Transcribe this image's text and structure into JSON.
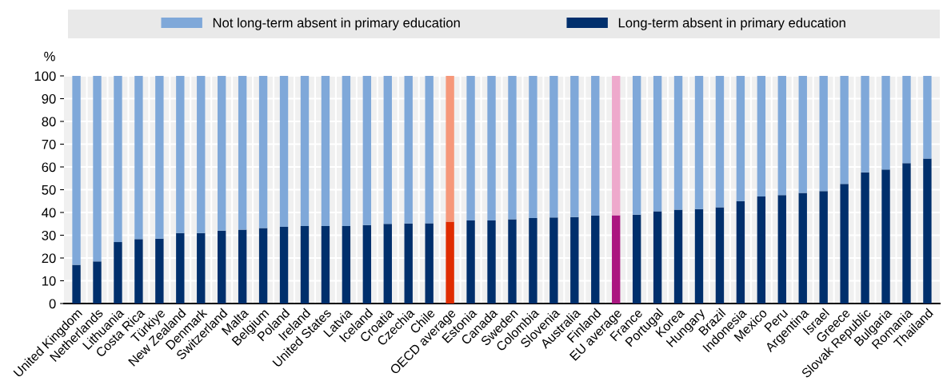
{
  "chart_data": {
    "type": "bar",
    "stacked": true,
    "ylabel": "%",
    "categories": [
      "United Kingdom",
      "Netherlands",
      "Lithuania",
      "Costa Rica",
      "Türkiye",
      "New Zealand",
      "Denmark",
      "Switzerland",
      "Malta",
      "Belgium",
      "Poland",
      "Ireland",
      "United States",
      "Latvia",
      "Iceland",
      "Croatia",
      "Czechia",
      "Chile",
      "OECD average",
      "Estonia",
      "Canada",
      "Sweden",
      "Colombia",
      "Slovenia",
      "Australia",
      "Finland",
      "EU average",
      "France",
      "Portugal",
      "Korea",
      "Hungary",
      "Brazil",
      "Indonesia",
      "Mexico",
      "Peru",
      "Argentina",
      "Israel",
      "Greece",
      "Slovak Republic",
      "Bulgaria",
      "Romania",
      "Thailand"
    ],
    "series": [
      {
        "name": "Long-term absent in primary education",
        "color": "#002f6c",
        "colors": [
          "#002f6c",
          "#002f6c",
          "#002f6c",
          "#002f6c",
          "#002f6c",
          "#002f6c",
          "#002f6c",
          "#002f6c",
          "#002f6c",
          "#002f6c",
          "#002f6c",
          "#002f6c",
          "#002f6c",
          "#002f6c",
          "#002f6c",
          "#002f6c",
          "#002f6c",
          "#002f6c",
          "#e02c00",
          "#002f6c",
          "#002f6c",
          "#002f6c",
          "#002f6c",
          "#002f6c",
          "#002f6c",
          "#002f6c",
          "#ab1680",
          "#002f6c",
          "#002f6c",
          "#002f6c",
          "#002f6c",
          "#002f6c",
          "#002f6c",
          "#002f6c",
          "#002f6c",
          "#002f6c",
          "#002f6c",
          "#002f6c",
          "#002f6c",
          "#002f6c",
          "#002f6c",
          "#002f6c"
        ],
        "values": [
          17,
          18.5,
          27,
          28.3,
          28.5,
          31,
          31,
          32,
          32.5,
          33.2,
          33.7,
          34,
          34,
          34,
          34.5,
          35,
          35.2,
          35.3,
          36,
          36.5,
          36.5,
          37,
          37.5,
          37.8,
          38,
          38.6,
          38.8,
          39,
          40.5,
          41.2,
          41.5,
          42.3,
          45,
          47,
          47.6,
          48.6,
          49.4,
          52.5,
          57.6,
          58.9,
          61.7,
          63.7
        ]
      },
      {
        "name": "Not long-term absent in primary education",
        "color": "#7fa8d9",
        "colors": [
          "#7fa8d9",
          "#7fa8d9",
          "#7fa8d9",
          "#7fa8d9",
          "#7fa8d9",
          "#7fa8d9",
          "#7fa8d9",
          "#7fa8d9",
          "#7fa8d9",
          "#7fa8d9",
          "#7fa8d9",
          "#7fa8d9",
          "#7fa8d9",
          "#7fa8d9",
          "#7fa8d9",
          "#7fa8d9",
          "#7fa8d9",
          "#7fa8d9",
          "#f6987a",
          "#7fa8d9",
          "#7fa8d9",
          "#7fa8d9",
          "#7fa8d9",
          "#7fa8d9",
          "#7fa8d9",
          "#7fa8d9",
          "#eea9cc",
          "#7fa8d9",
          "#7fa8d9",
          "#7fa8d9",
          "#7fa8d9",
          "#7fa8d9",
          "#7fa8d9",
          "#7fa8d9",
          "#7fa8d9",
          "#7fa8d9",
          "#7fa8d9",
          "#7fa8d9",
          "#7fa8d9",
          "#7fa8d9",
          "#7fa8d9",
          "#7fa8d9"
        ],
        "values": [
          83,
          81.5,
          73,
          71.7,
          71.5,
          69,
          69,
          68,
          67.5,
          66.8,
          66.3,
          66,
          66,
          66,
          65.5,
          65,
          64.8,
          64.7,
          64,
          63.5,
          63.5,
          63,
          62.5,
          62.2,
          62,
          61.4,
          61.2,
          61,
          59.5,
          58.8,
          58.5,
          57.7,
          55,
          53,
          52.4,
          51.4,
          50.6,
          47.5,
          42.4,
          41.1,
          38.3,
          36.3
        ]
      }
    ],
    "ylim": [
      0,
      100
    ],
    "yticks": [
      0,
      10,
      20,
      30,
      40,
      50,
      60,
      70,
      80,
      90,
      100
    ],
    "grid": true,
    "legend": "top"
  }
}
